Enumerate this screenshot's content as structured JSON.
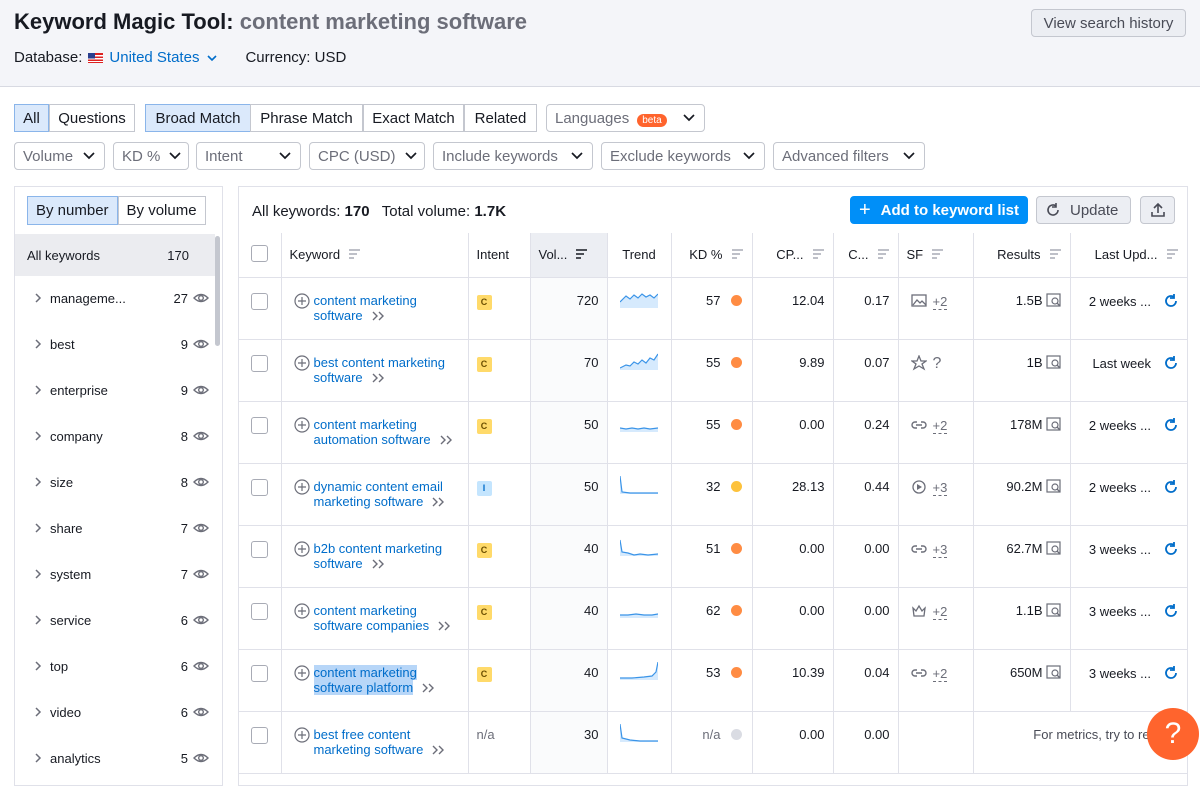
{
  "header": {
    "title": "Keyword Magic Tool:",
    "query": "content marketing software",
    "history_button": "View search history",
    "database_label": "Database:",
    "database": "United States",
    "currency": "Currency: USD"
  },
  "tabs": [
    "All",
    "Questions"
  ],
  "match_tabs": [
    "Broad Match",
    "Phrase Match",
    "Exact Match",
    "Related"
  ],
  "languages": {
    "label": "Languages",
    "badge": "beta"
  },
  "filters": [
    "Volume",
    "KD %",
    "Intent",
    "CPC (USD)",
    "Include keywords",
    "Exclude keywords",
    "Advanced filters"
  ],
  "sidebar": {
    "toggle": [
      "By number",
      "By volume"
    ],
    "all": {
      "label": "All keywords",
      "count": 170
    },
    "groups": [
      {
        "label": "manageme...",
        "count": 27
      },
      {
        "label": "best",
        "count": 9
      },
      {
        "label": "enterprise",
        "count": 9
      },
      {
        "label": "company",
        "count": 8
      },
      {
        "label": "size",
        "count": 8
      },
      {
        "label": "share",
        "count": 7
      },
      {
        "label": "system",
        "count": 7
      },
      {
        "label": "service",
        "count": 6
      },
      {
        "label": "top",
        "count": 6
      },
      {
        "label": "video",
        "count": 6
      },
      {
        "label": "analytics",
        "count": 5
      }
    ]
  },
  "summary": {
    "keywords_label": "All keywords:",
    "keywords": 170,
    "volume_label": "Total volume:",
    "volume": "1.7K"
  },
  "actions": {
    "add": "Add to keyword list",
    "update": "Update"
  },
  "table": {
    "columns": [
      "Keyword",
      "Intent",
      "Vol...",
      "Trend",
      "KD %",
      "CP...",
      "C...",
      "SF",
      "Results",
      "Last Upd..."
    ],
    "rows": [
      {
        "keyword": "content marketing software",
        "intent": "C",
        "volume": 720,
        "kd": 57,
        "cpc": "12.04",
        "com": "0.17",
        "sf": "+2",
        "results": "1.5B",
        "updated": "2 weeks ..."
      },
      {
        "keyword": "best content marketing software",
        "intent": "C",
        "volume": 70,
        "kd": 55,
        "cpc": "9.89",
        "com": "0.07",
        "sf": "?",
        "results": "1B",
        "updated": "Last week"
      },
      {
        "keyword": "content marketing automation software",
        "intent": "C",
        "volume": 50,
        "kd": 55,
        "cpc": "0.00",
        "com": "0.24",
        "sf": "+2",
        "results": "178M",
        "updated": "2 weeks ..."
      },
      {
        "keyword": "dynamic content email marketing software",
        "intent": "I",
        "volume": 50,
        "kd": 32,
        "cpc": "28.13",
        "com": "0.44",
        "sf": "+3",
        "results": "90.2M",
        "updated": "2 weeks ..."
      },
      {
        "keyword": "b2b content marketing software",
        "intent": "C",
        "volume": 40,
        "kd": 51,
        "cpc": "0.00",
        "com": "0.00",
        "sf": "+3",
        "results": "62.7M",
        "updated": "3 weeks ..."
      },
      {
        "keyword": "content marketing software companies",
        "intent": "C",
        "volume": 40,
        "kd": 62,
        "cpc": "0.00",
        "com": "0.00",
        "sf": "+2",
        "results": "1.1B",
        "updated": "3 weeks ..."
      },
      {
        "keyword": "content marketing software platform",
        "intent": "C",
        "volume": 40,
        "kd": 53,
        "cpc": "10.39",
        "com": "0.04",
        "sf": "+2",
        "results": "650M",
        "updated": "3 weeks ..."
      },
      {
        "keyword": "best free content marketing software",
        "intent": "n/a",
        "volume": 30,
        "kd": "n/a",
        "cpc": "0.00",
        "com": "0.00",
        "note": "For metrics, try to refresh"
      }
    ]
  },
  "help": "?"
}
